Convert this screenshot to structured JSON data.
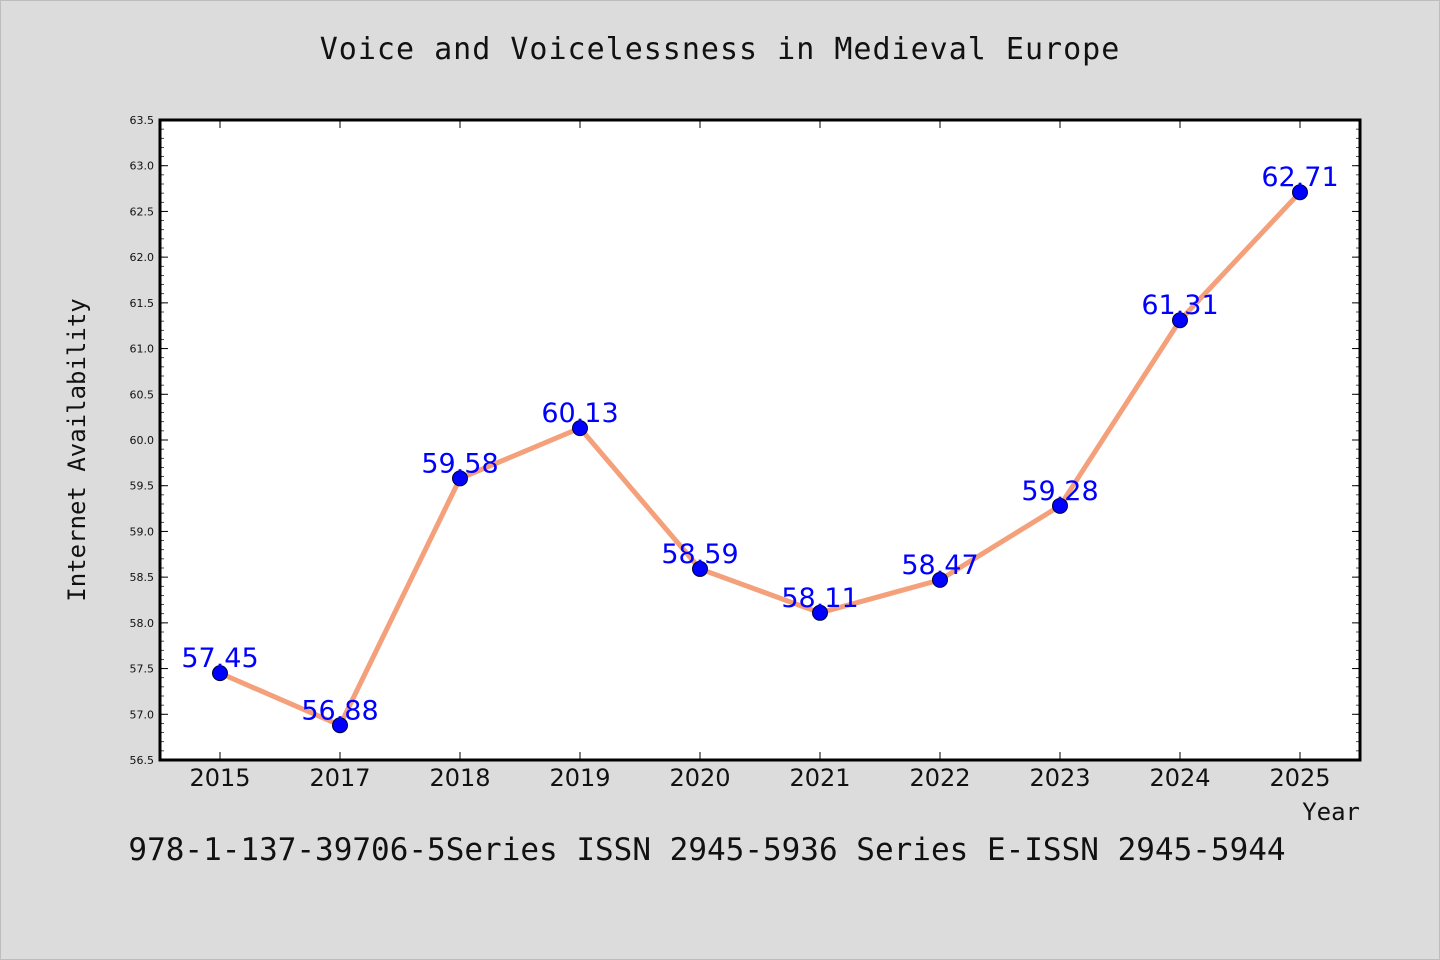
{
  "title": "Voice and Voicelessness in Medieval Europe",
  "footer": "978-1-137-39706-5Series ISSN 2945-5936 Series E-ISSN 2945-5944",
  "colors": {
    "background": "#dcdcdc",
    "plot_background": "#ffffff",
    "line": "#f4a07a",
    "marker": "#0000ff",
    "data_label": "#0000ff"
  },
  "chart_data": {
    "type": "line",
    "title": "Voice and Voicelessness in Medieval Europe",
    "xlabel": "Year",
    "ylabel": "Internet Availability",
    "categories": [
      "2015",
      "2017",
      "2018",
      "2019",
      "2020",
      "2021",
      "2022",
      "2023",
      "2024",
      "2025"
    ],
    "values": [
      57.45,
      56.88,
      59.58,
      60.13,
      58.59,
      58.11,
      58.47,
      59.28,
      61.31,
      62.71
    ],
    "data_labels": [
      "57.45",
      "56.88",
      "59.58",
      "60.13",
      "58.59",
      "58.11",
      "58.47",
      "59.28",
      "61.31",
      "62.71"
    ],
    "ylim": [
      56.5,
      63.5
    ],
    "yticks": [
      "56.5",
      "57.0",
      "57.5",
      "58.0",
      "58.5",
      "59.0",
      "59.5",
      "60.0",
      "60.5",
      "61.0",
      "61.5",
      "62.0",
      "62.5",
      "63.0",
      "63.5"
    ],
    "grid": false,
    "legend": "none"
  }
}
